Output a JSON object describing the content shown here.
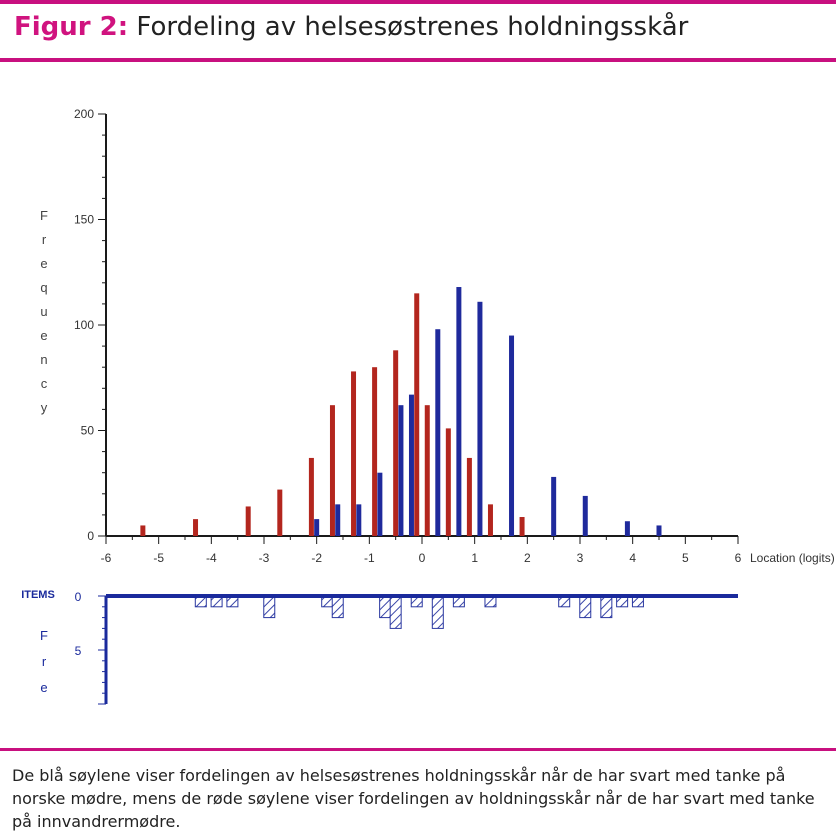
{
  "figure": {
    "label": "Figur 2:",
    "title": "Fordeling av helsesøstrenes holdningsskår",
    "caption": "De blå søylene viser fordelingen av helsesøstrenes holdningsskår når de har svart med tanke på norske mødre, mens de røde søylene viser fordelingen av holdningsskår når de har svart med tanke på innvandrermødre."
  },
  "colors": {
    "accent": "#c8107f",
    "blue_series": "#1f2a9c",
    "red_series": "#b3261e",
    "axis": "#1a1a1a"
  },
  "chart_data": [
    {
      "type": "bar",
      "xlabel": "Location (logits)",
      "ylabel": "Frequency",
      "xlim": [
        -6,
        6
      ],
      "ylim": [
        0,
        200
      ],
      "x_ticks": [
        "-6",
        "-5",
        "-4",
        "-3",
        "-2",
        "-1",
        "0",
        "1",
        "2",
        "3",
        "4",
        "5",
        "6"
      ],
      "y_ticks": [
        "0",
        "50",
        "100",
        "150",
        "200"
      ],
      "series": [
        {
          "color": "#b3261e",
          "points": [
            {
              "x": -5.3,
              "y": 5
            },
            {
              "x": -4.3,
              "y": 8
            },
            {
              "x": -3.3,
              "y": 14
            },
            {
              "x": -2.7,
              "y": 22
            },
            {
              "x": -2.1,
              "y": 37
            },
            {
              "x": -1.7,
              "y": 62
            },
            {
              "x": -1.3,
              "y": 78
            },
            {
              "x": -0.9,
              "y": 80
            },
            {
              "x": -0.5,
              "y": 88
            },
            {
              "x": -0.1,
              "y": 115
            },
            {
              "x": 0.1,
              "y": 62
            },
            {
              "x": 0.5,
              "y": 51
            },
            {
              "x": 0.9,
              "y": 37
            },
            {
              "x": 1.3,
              "y": 15
            },
            {
              "x": 1.9,
              "y": 9
            }
          ]
        },
        {
          "color": "#1f2a9c",
          "points": [
            {
              "x": -2.0,
              "y": 8
            },
            {
              "x": -1.6,
              "y": 15
            },
            {
              "x": -1.2,
              "y": 15
            },
            {
              "x": -0.8,
              "y": 30
            },
            {
              "x": -0.4,
              "y": 62
            },
            {
              "x": -0.2,
              "y": 67
            },
            {
              "x": 0.3,
              "y": 98
            },
            {
              "x": 0.7,
              "y": 118
            },
            {
              "x": 1.1,
              "y": 111
            },
            {
              "x": 1.7,
              "y": 95
            },
            {
              "x": 2.5,
              "y": 28
            },
            {
              "x": 3.1,
              "y": 19
            },
            {
              "x": 3.9,
              "y": 7
            },
            {
              "x": 4.5,
              "y": 5
            }
          ]
        }
      ]
    },
    {
      "type": "bar",
      "ylabel": "ITEMS Fre",
      "ylim": [
        0,
        10
      ],
      "y_ticks": [
        "0",
        "5"
      ],
      "inverted": true,
      "x_ticks": [],
      "series": [
        {
          "pattern": "hatched",
          "points": [
            {
              "x": -4.2,
              "y": 1
            },
            {
              "x": -3.9,
              "y": 1
            },
            {
              "x": -3.6,
              "y": 1
            },
            {
              "x": -2.9,
              "y": 2
            },
            {
              "x": -1.8,
              "y": 1
            },
            {
              "x": -1.6,
              "y": 2
            },
            {
              "x": -0.7,
              "y": 2
            },
            {
              "x": -0.5,
              "y": 3
            },
            {
              "x": -0.1,
              "y": 1
            },
            {
              "x": 0.3,
              "y": 3
            },
            {
              "x": 0.7,
              "y": 1
            },
            {
              "x": 1.3,
              "y": 1
            },
            {
              "x": 2.7,
              "y": 1
            },
            {
              "x": 3.1,
              "y": 2
            },
            {
              "x": 3.5,
              "y": 2
            },
            {
              "x": 3.8,
              "y": 1
            },
            {
              "x": 4.1,
              "y": 1
            }
          ]
        }
      ]
    }
  ]
}
